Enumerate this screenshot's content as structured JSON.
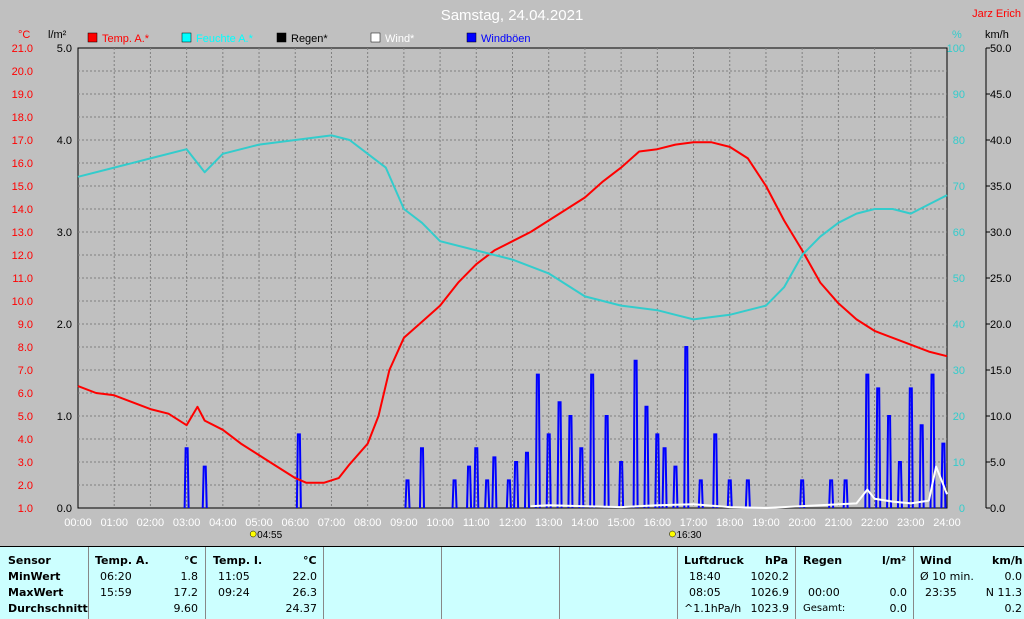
{
  "header": {
    "title": "Samstag, 24.04.2021",
    "author": "Jarz Erich"
  },
  "colors": {
    "temp": "#ff0000",
    "humidity": "#33cccc",
    "rain": "#000000",
    "wind": "#ffffff",
    "gusts": "#0000ff",
    "grid": "#808080",
    "plot_bg": "#c0c0c0"
  },
  "chart_data": {
    "type": "line",
    "title": "Samstag, 24.04.2021",
    "x": {
      "min": 0,
      "max": 24,
      "unit": "h"
    },
    "xticks": [
      "00:00",
      "01:00",
      "02:00",
      "03:00",
      "04:00",
      "05:00",
      "06:00",
      "07:00",
      "08:00",
      "09:00",
      "10:00",
      "11:00",
      "12:00",
      "13:00",
      "14:00",
      "15:00",
      "16:00",
      "17:00",
      "18:00",
      "19:00",
      "20:00",
      "21:00",
      "22:00",
      "23:00",
      "24:00"
    ],
    "axes": {
      "temp": {
        "label": "°C",
        "min": 1,
        "max": 21,
        "ticks": [
          "1.0",
          "2.0",
          "3.0",
          "4.0",
          "5.0",
          "6.0",
          "7.0",
          "8.0",
          "9.0",
          "10.0",
          "11.0",
          "12.0",
          "13.0",
          "14.0",
          "15.0",
          "16.0",
          "17.0",
          "18.0",
          "19.0",
          "20.0",
          "21.0"
        ]
      },
      "rain": {
        "label": "l/m²",
        "min": 0,
        "max": 5,
        "ticks": [
          "0.0",
          "1.0",
          "2.0",
          "3.0",
          "4.0",
          "5.0"
        ]
      },
      "humidity": {
        "label": "%",
        "min": 0,
        "max": 100,
        "ticks": [
          "0",
          "10",
          "20",
          "30",
          "40",
          "50",
          "60",
          "70",
          "80",
          "90",
          "100"
        ]
      },
      "wind": {
        "label": "km/h",
        "min": 0,
        "max": 50,
        "ticks": [
          "0.0",
          "5.0",
          "10.0",
          "15.0",
          "20.0",
          "25.0",
          "30.0",
          "35.0",
          "40.0",
          "45.0",
          "50.0"
        ]
      }
    },
    "legend": [
      {
        "name": "Temp. A.*",
        "color": "#ff0000"
      },
      {
        "name": "Feuchte A.*",
        "color": "#00ffff"
      },
      {
        "name": "Regen*",
        "color": "#000000"
      },
      {
        "name": "Wind*",
        "color": "#ffffff"
      },
      {
        "name": "Windböen",
        "color": "#0000ff"
      }
    ],
    "sun": {
      "sunrise": "04:55",
      "sunset": "16:30",
      "sunrise_h": 4.92,
      "sunset_h": 16.5
    },
    "series": [
      {
        "name": "Temp. A.*",
        "axis": "temp",
        "points": [
          [
            0,
            6.3
          ],
          [
            0.5,
            6.0
          ],
          [
            1,
            5.9
          ],
          [
            1.5,
            5.6
          ],
          [
            2,
            5.3
          ],
          [
            2.5,
            5.1
          ],
          [
            3,
            4.6
          ],
          [
            3.3,
            5.4
          ],
          [
            3.5,
            4.8
          ],
          [
            4,
            4.4
          ],
          [
            4.5,
            3.8
          ],
          [
            5,
            3.3
          ],
          [
            5.5,
            2.8
          ],
          [
            6,
            2.3
          ],
          [
            6.3,
            2.1
          ],
          [
            6.8,
            2.1
          ],
          [
            7.2,
            2.3
          ],
          [
            7.5,
            2.9
          ],
          [
            8,
            3.8
          ],
          [
            8.3,
            5.0
          ],
          [
            8.6,
            7.0
          ],
          [
            9,
            8.4
          ],
          [
            9.5,
            9.1
          ],
          [
            10,
            9.8
          ],
          [
            10.5,
            10.8
          ],
          [
            11,
            11.6
          ],
          [
            11.5,
            12.2
          ],
          [
            12,
            12.6
          ],
          [
            12.5,
            13.0
          ],
          [
            13,
            13.5
          ],
          [
            13.5,
            14.0
          ],
          [
            14,
            14.5
          ],
          [
            14.5,
            15.2
          ],
          [
            15,
            15.8
          ],
          [
            15.5,
            16.5
          ],
          [
            16,
            16.6
          ],
          [
            16.5,
            16.8
          ],
          [
            17,
            16.9
          ],
          [
            17.5,
            16.9
          ],
          [
            18,
            16.7
          ],
          [
            18.5,
            16.2
          ],
          [
            19,
            15.0
          ],
          [
            19.5,
            13.5
          ],
          [
            20,
            12.2
          ],
          [
            20.5,
            10.8
          ],
          [
            21,
            9.9
          ],
          [
            21.5,
            9.2
          ],
          [
            22,
            8.7
          ],
          [
            22.5,
            8.4
          ],
          [
            23,
            8.1
          ],
          [
            23.5,
            7.8
          ],
          [
            24,
            7.6
          ]
        ]
      },
      {
        "name": "Feuchte A.*",
        "axis": "humidity",
        "points": [
          [
            0,
            72
          ],
          [
            1,
            74
          ],
          [
            2,
            76
          ],
          [
            3,
            78
          ],
          [
            3.5,
            73
          ],
          [
            4,
            77
          ],
          [
            5,
            79
          ],
          [
            6,
            80
          ],
          [
            7,
            81
          ],
          [
            7.5,
            80
          ],
          [
            8,
            77
          ],
          [
            8.5,
            74
          ],
          [
            9,
            65
          ],
          [
            9.5,
            62
          ],
          [
            10,
            58
          ],
          [
            11,
            56
          ],
          [
            12,
            54
          ],
          [
            13,
            51
          ],
          [
            14,
            46
          ],
          [
            15,
            44
          ],
          [
            16,
            43
          ],
          [
            16.5,
            42
          ],
          [
            17,
            41
          ],
          [
            18,
            42
          ],
          [
            18.5,
            43
          ],
          [
            19,
            44
          ],
          [
            19.5,
            48
          ],
          [
            20,
            55
          ],
          [
            20.5,
            59
          ],
          [
            21,
            62
          ],
          [
            21.5,
            64
          ],
          [
            22,
            65
          ],
          [
            22.5,
            65
          ],
          [
            23,
            64
          ],
          [
            23.5,
            66
          ],
          [
            24,
            68
          ]
        ]
      },
      {
        "name": "Windböen",
        "axis": "wind",
        "bars": [
          [
            3.0,
            6.5
          ],
          [
            3.5,
            4.5
          ],
          [
            6.1,
            8.0
          ],
          [
            9.1,
            3.0
          ],
          [
            9.5,
            6.5
          ],
          [
            10.4,
            3.0
          ],
          [
            10.8,
            4.5
          ],
          [
            11.0,
            6.5
          ],
          [
            11.3,
            3.0
          ],
          [
            11.5,
            5.5
          ],
          [
            11.9,
            3.0
          ],
          [
            12.1,
            5.0
          ],
          [
            12.4,
            6.0
          ],
          [
            12.7,
            14.5
          ],
          [
            13.0,
            8.0
          ],
          [
            13.3,
            11.5
          ],
          [
            13.6,
            10.0
          ],
          [
            13.9,
            6.5
          ],
          [
            14.2,
            14.5
          ],
          [
            14.6,
            10.0
          ],
          [
            15.0,
            5.0
          ],
          [
            15.4,
            16.0
          ],
          [
            15.7,
            11.0
          ],
          [
            16.0,
            8.0
          ],
          [
            16.2,
            6.5
          ],
          [
            16.5,
            4.5
          ],
          [
            16.8,
            17.5
          ],
          [
            17.2,
            3.0
          ],
          [
            17.6,
            8.0
          ],
          [
            18.0,
            3.0
          ],
          [
            18.5,
            3.0
          ],
          [
            20.0,
            3.0
          ],
          [
            20.8,
            3.0
          ],
          [
            21.2,
            3.0
          ],
          [
            21.8,
            14.5
          ],
          [
            22.1,
            13.0
          ],
          [
            22.4,
            10.0
          ],
          [
            22.7,
            5.0
          ],
          [
            23.0,
            13.0
          ],
          [
            23.3,
            9.0
          ],
          [
            23.6,
            14.5
          ],
          [
            23.9,
            7.0
          ]
        ]
      },
      {
        "name": "Wind*",
        "axis": "wind",
        "points": [
          [
            12.5,
            0.2
          ],
          [
            13,
            0.3
          ],
          [
            14,
            0.2
          ],
          [
            15,
            0.1
          ],
          [
            16,
            0.3
          ],
          [
            17,
            0.4
          ],
          [
            18,
            0.1
          ],
          [
            19,
            0
          ],
          [
            21.5,
            0.5
          ],
          [
            21.8,
            2.0
          ],
          [
            22,
            1.0
          ],
          [
            22.5,
            0.7
          ],
          [
            23,
            0.5
          ],
          [
            23.5,
            0.8
          ],
          [
            23.7,
            4.5
          ],
          [
            23.9,
            2.5
          ],
          [
            24,
            1.5
          ]
        ]
      }
    ]
  },
  "table": {
    "sensor": {
      "header": "Sensor",
      "rows": [
        "MinWert",
        "MaxWert",
        "Durchschnitt"
      ]
    },
    "temp_a": {
      "header": "Temp. A.",
      "unit": "°C",
      "times": [
        "06:20",
        "15:59",
        ""
      ],
      "values": [
        "1.8",
        "17.2",
        "9.60"
      ]
    },
    "temp_i": {
      "header": "Temp. I.",
      "unit": "°C",
      "times": [
        "11:05",
        "09:24",
        ""
      ],
      "values": [
        "22.0",
        "26.3",
        "24.37"
      ]
    },
    "pressure": {
      "header": "Luftdruck",
      "unit": "hPa",
      "times": [
        "18:40",
        "08:05",
        "^1.1hPa/h"
      ],
      "values": [
        "1020.2",
        "1026.9",
        "1023.9"
      ]
    },
    "rain": {
      "header": "Regen",
      "unit": "l/m²",
      "labels": [
        "",
        "00:00",
        "Gesamt:"
      ],
      "values": [
        "",
        "0.0",
        "0.0"
      ]
    },
    "wind": {
      "header": "Wind",
      "unit": "km/h",
      "labels": [
        "Ø 10 min.",
        "23:35",
        ""
      ],
      "values": [
        "0.0",
        "N 11.3",
        "0.2"
      ]
    }
  }
}
